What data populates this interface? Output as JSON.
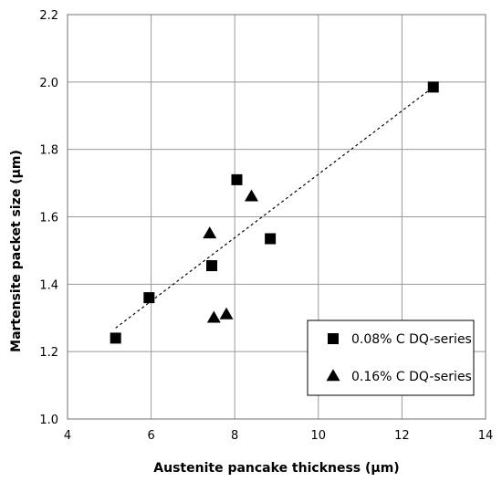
{
  "chart_data": {
    "type": "scatter",
    "xlabel": "Austenite pancake thickness (µm)",
    "ylabel": "Martensite packet size (µm)",
    "xlim": [
      4,
      14
    ],
    "ylim": [
      1.0,
      2.2
    ],
    "x_ticks": [
      "4",
      "6",
      "8",
      "10",
      "12",
      "14"
    ],
    "y_ticks": [
      "1.0",
      "1.2",
      "1.4",
      "1.6",
      "1.8",
      "2.0",
      "2.2"
    ],
    "grid": true,
    "legend_position": "bottom-right",
    "series": [
      {
        "name": "0.08% C DQ-series",
        "marker": "square",
        "color": "#000000",
        "points": [
          {
            "x": 5.15,
            "y": 1.24
          },
          {
            "x": 5.95,
            "y": 1.36
          },
          {
            "x": 7.45,
            "y": 1.455
          },
          {
            "x": 8.05,
            "y": 1.71
          },
          {
            "x": 8.85,
            "y": 1.535
          },
          {
            "x": 12.75,
            "y": 1.985
          }
        ]
      },
      {
        "name": "0.16% C DQ-series",
        "marker": "triangle",
        "color": "#000000",
        "points": [
          {
            "x": 7.4,
            "y": 1.55
          },
          {
            "x": 7.5,
            "y": 1.3
          },
          {
            "x": 7.8,
            "y": 1.31
          },
          {
            "x": 8.4,
            "y": 1.66
          }
        ]
      }
    ],
    "trendline": {
      "style": "dashed",
      "from": {
        "x": 5.15,
        "y": 1.27
      },
      "to": {
        "x": 12.75,
        "y": 1.985
      }
    }
  }
}
